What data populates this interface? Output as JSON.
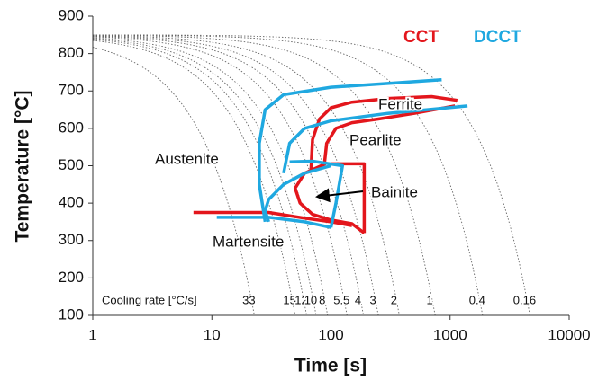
{
  "chart_data": {
    "type": "line",
    "xlabel": "Time [s]",
    "ylabel": "Temperature [°C]",
    "xscale": "log",
    "xlim": [
      1,
      10000
    ],
    "xticks": [
      1,
      10,
      100,
      1000,
      10000
    ],
    "ylim": [
      100,
      900
    ],
    "yticks": [
      100,
      200,
      300,
      400,
      500,
      600,
      700,
      800,
      900
    ],
    "grid": false,
    "cooling_rate_title": "Cooling rate [°C/s]",
    "cooling_start": 850,
    "cooling_rates": [
      33,
      15,
      12,
      10,
      8,
      5.5,
      4,
      3,
      2,
      1,
      0.4,
      0.16
    ],
    "cooling_color": "#666666",
    "series": [
      {
        "name": "CCT",
        "color": "#e3161c",
        "curves": [
          {
            "x": [
              68,
              70,
              80,
              100,
              150,
              300,
              700,
              1150
            ],
            "y": [
              490,
              570,
              625,
              655,
              670,
              680,
              685,
              675
            ]
          },
          {
            "x": [
              88,
              92,
              110,
              150,
              250,
              500,
              1100
            ],
            "y": [
              505,
              560,
              600,
              615,
              625,
              640,
              660
            ]
          },
          {
            "x": [
              100,
              190,
              190
            ],
            "y": [
              505,
              505,
              320
            ]
          },
          {
            "x": [
              90,
              60,
              50,
              55,
              70,
              100,
              150,
              190
            ],
            "y": [
              505,
              480,
              440,
              400,
              370,
              355,
              345,
              320
            ]
          },
          {
            "x": [
              7,
              30,
              60,
              100,
              150
            ],
            "y": [
              375,
              375,
              360,
              350,
              340
            ]
          }
        ]
      },
      {
        "name": "DCCT",
        "color": "#1fa8e0",
        "curves": [
          {
            "x": [
              28,
              25,
              25,
              28,
              40,
              100,
              300,
              850
            ],
            "y": [
              350,
              450,
              560,
              650,
              690,
              710,
              720,
              730
            ]
          },
          {
            "x": [
              40,
              45,
              60,
              100,
              300,
              1400
            ],
            "y": [
              480,
              560,
              600,
              620,
              640,
              660
            ]
          },
          {
            "x": [
              45,
              70,
              125,
              110,
              100
            ],
            "y": [
              510,
              512,
              500,
              400,
              335
            ]
          },
          {
            "x": [
              100,
              60,
              40,
              30,
              28,
              30
            ],
            "y": [
              500,
              480,
              450,
              410,
              380,
              350
            ]
          },
          {
            "x": [
              11,
              30,
              60,
              100
            ],
            "y": [
              362,
              362,
              350,
              335
            ]
          }
        ]
      }
    ],
    "annotations": [
      "Austenite",
      "Ferrite",
      "Pearlite",
      "Bainite",
      "Martensite"
    ]
  }
}
